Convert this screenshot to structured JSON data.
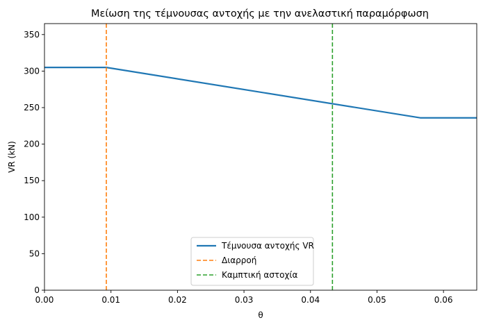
{
  "chart_data": {
    "type": "line",
    "title": "Μείωση της τέμνουσας αντοχής με την ανελαστική παραμόρφωση",
    "xlabel": "θ",
    "ylabel": "VR (kN)",
    "xlim": [
      0,
      0.065
    ],
    "ylim": [
      0,
      365
    ],
    "xticks": [
      0,
      0.01,
      0.02,
      0.03,
      0.04,
      0.05,
      0.06
    ],
    "xtick_labels": [
      "0.00",
      "0.01",
      "0.02",
      "0.03",
      "0.04",
      "0.05",
      "0.06"
    ],
    "yticks": [
      0,
      50,
      100,
      150,
      200,
      250,
      300,
      350
    ],
    "ytick_labels": [
      "0",
      "50",
      "100",
      "150",
      "200",
      "250",
      "300",
      "350"
    ],
    "grid": false,
    "legend_position": "bottom-center",
    "series": [
      {
        "name": "Τέμνουσα αντοχής VR",
        "kind": "line",
        "style": "solid",
        "color": "#1f77b4",
        "x": [
          0,
          0.0093,
          0.0565,
          0.065
        ],
        "y": [
          305,
          305,
          236,
          236
        ]
      },
      {
        "name": "Διαρροή",
        "kind": "vline",
        "style": "dashed",
        "color": "#ff7f0e",
        "x": 0.0093
      },
      {
        "name": "Καμπτική αστοχία",
        "kind": "vline",
        "style": "dashed",
        "color": "#2ca02c",
        "x": 0.0433
      }
    ]
  }
}
